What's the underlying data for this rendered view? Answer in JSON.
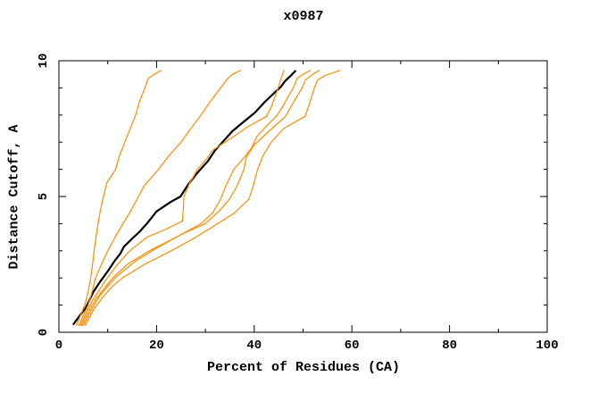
{
  "header": {
    "title": "x0987"
  },
  "chart_data": {
    "type": "line",
    "title": "x0987",
    "xlabel": "Percent of Residues (CA)",
    "ylabel": "Distance Cutoff, A",
    "xlim": [
      0,
      100
    ],
    "ylim": [
      0,
      10
    ],
    "x_major_ticks": [
      0,
      20,
      40,
      60,
      80,
      100
    ],
    "x_minor_ticks": [
      10,
      30,
      50,
      70,
      90
    ],
    "y_major_ticks": [
      0,
      5,
      10
    ],
    "y_minor_ticks": [
      1,
      2,
      3,
      4,
      6,
      7,
      8,
      9
    ],
    "x_tick_labels": [
      "0",
      "20",
      "40",
      "60",
      "80",
      "100"
    ],
    "y_tick_labels": [
      "0",
      "5",
      "10"
    ],
    "grid": false,
    "legend": null,
    "axis_color": "#000000",
    "background_color": "#ffffff",
    "series": [
      {
        "name": "black-line",
        "color": "#000000",
        "width": 2.2,
        "points": [
          [
            3.0,
            0.3
          ],
          [
            4.0,
            0.55
          ],
          [
            5.5,
            0.9
          ],
          [
            6.3,
            1.2
          ],
          [
            7.1,
            1.5
          ],
          [
            8.4,
            1.85
          ],
          [
            9.4,
            2.1
          ],
          [
            10.2,
            2.3
          ],
          [
            11.3,
            2.6
          ],
          [
            12.6,
            2.9
          ],
          [
            13.3,
            3.15
          ],
          [
            15.0,
            3.45
          ],
          [
            16.5,
            3.7
          ],
          [
            18.0,
            4.0
          ],
          [
            20.0,
            4.45
          ],
          [
            22.9,
            4.8
          ],
          [
            24.9,
            5.0
          ],
          [
            26.5,
            5.45
          ],
          [
            28.5,
            5.9
          ],
          [
            30.5,
            6.3
          ],
          [
            32.0,
            6.7
          ],
          [
            33.5,
            7.0
          ],
          [
            35.5,
            7.4
          ],
          [
            37.5,
            7.7
          ],
          [
            40.2,
            8.1
          ],
          [
            42.0,
            8.45
          ],
          [
            44.0,
            8.8
          ],
          [
            45.5,
            9.05
          ],
          [
            46.3,
            9.25
          ],
          [
            47.5,
            9.45
          ],
          [
            48.4,
            9.62
          ]
        ]
      },
      {
        "name": "orange-line-1",
        "color": "#ff8c00",
        "width": 1.2,
        "points": [
          [
            3.6,
            0.25
          ],
          [
            4.6,
            0.7
          ],
          [
            5.3,
            1.0
          ],
          [
            6.0,
            1.5
          ],
          [
            6.5,
            2.0
          ],
          [
            6.9,
            2.5
          ],
          [
            7.2,
            3.0
          ],
          [
            7.6,
            3.5
          ],
          [
            8.0,
            4.0
          ],
          [
            8.5,
            4.5
          ],
          [
            9.0,
            4.9
          ],
          [
            9.8,
            5.5
          ],
          [
            11.6,
            6.0
          ],
          [
            12.4,
            6.5
          ],
          [
            13.5,
            7.0
          ],
          [
            14.6,
            7.5
          ],
          [
            15.7,
            8.0
          ],
          [
            16.5,
            8.5
          ],
          [
            17.6,
            9.0
          ],
          [
            18.3,
            9.35
          ],
          [
            19.5,
            9.5
          ],
          [
            20.9,
            9.64
          ]
        ]
      },
      {
        "name": "orange-line-2",
        "color": "#ff8c00",
        "width": 1.2,
        "points": [
          [
            4.1,
            0.25
          ],
          [
            5.2,
            0.7
          ],
          [
            6.0,
            1.0
          ],
          [
            6.8,
            1.5
          ],
          [
            7.5,
            2.0
          ],
          [
            8.7,
            2.5
          ],
          [
            10.0,
            3.0
          ],
          [
            11.5,
            3.5
          ],
          [
            13.1,
            4.0
          ],
          [
            14.5,
            4.4
          ],
          [
            16.0,
            4.9
          ],
          [
            17.5,
            5.4
          ],
          [
            20.4,
            6.0
          ],
          [
            22.5,
            6.5
          ],
          [
            25.0,
            7.0
          ],
          [
            27.0,
            7.5
          ],
          [
            29.1,
            8.0
          ],
          [
            31.0,
            8.5
          ],
          [
            33.1,
            9.0
          ],
          [
            34.6,
            9.35
          ],
          [
            35.5,
            9.5
          ],
          [
            37.2,
            9.64
          ]
        ]
      },
      {
        "name": "orange-line-3",
        "color": "#ff8c00",
        "width": 1.2,
        "points": [
          [
            4.4,
            0.25
          ],
          [
            5.8,
            0.8
          ],
          [
            7.0,
            1.2
          ],
          [
            9.5,
            1.9
          ],
          [
            12.0,
            2.5
          ],
          [
            14.5,
            3.0
          ],
          [
            18.0,
            3.5
          ],
          [
            22.0,
            3.8
          ],
          [
            25.3,
            4.1
          ],
          [
            25.5,
            4.6
          ],
          [
            25.6,
            5.0
          ],
          [
            26.8,
            5.5
          ],
          [
            28.4,
            6.0
          ],
          [
            30.3,
            6.4
          ],
          [
            31.5,
            6.7
          ],
          [
            34.0,
            7.0
          ],
          [
            36.5,
            7.3
          ],
          [
            38.5,
            7.55
          ],
          [
            40.5,
            7.75
          ],
          [
            42.5,
            7.95
          ],
          [
            43.5,
            8.3
          ],
          [
            44.3,
            8.7
          ],
          [
            45.0,
            9.05
          ],
          [
            45.6,
            9.4
          ],
          [
            46.1,
            9.64
          ]
        ]
      },
      {
        "name": "orange-line-4",
        "color": "#ff8c00",
        "width": 1.2,
        "points": [
          [
            4.7,
            0.25
          ],
          [
            6.2,
            0.8
          ],
          [
            7.5,
            1.2
          ],
          [
            9.2,
            1.6
          ],
          [
            11.0,
            2.0
          ],
          [
            14.0,
            2.5
          ],
          [
            18.5,
            3.0
          ],
          [
            24.0,
            3.5
          ],
          [
            29.1,
            4.0
          ],
          [
            31.5,
            4.4
          ],
          [
            33.1,
            4.9
          ],
          [
            34.2,
            5.4
          ],
          [
            35.8,
            6.0
          ],
          [
            38.0,
            6.45
          ],
          [
            39.5,
            6.8
          ],
          [
            40.5,
            7.2
          ],
          [
            42.5,
            7.6
          ],
          [
            44.5,
            7.95
          ],
          [
            45.8,
            8.3
          ],
          [
            47.0,
            8.7
          ],
          [
            48.0,
            9.0
          ],
          [
            48.8,
            9.35
          ],
          [
            50.0,
            9.5
          ],
          [
            51.5,
            9.64
          ]
        ]
      },
      {
        "name": "orange-line-5",
        "color": "#ff8c00",
        "width": 1.2,
        "points": [
          [
            5.0,
            0.25
          ],
          [
            6.6,
            0.8
          ],
          [
            8.2,
            1.3
          ],
          [
            9.8,
            1.65
          ],
          [
            11.5,
            2.0
          ],
          [
            15.5,
            2.6
          ],
          [
            20.0,
            3.1
          ],
          [
            25.0,
            3.6
          ],
          [
            30.0,
            4.0
          ],
          [
            33.0,
            4.5
          ],
          [
            34.9,
            4.9
          ],
          [
            36.5,
            5.4
          ],
          [
            37.9,
            6.0
          ],
          [
            38.4,
            6.45
          ],
          [
            40.0,
            6.9
          ],
          [
            43.0,
            7.4
          ],
          [
            46.4,
            7.95
          ],
          [
            47.5,
            8.3
          ],
          [
            48.8,
            8.7
          ],
          [
            49.8,
            9.0
          ],
          [
            50.5,
            9.3
          ],
          [
            52.0,
            9.5
          ],
          [
            53.3,
            9.64
          ]
        ]
      },
      {
        "name": "orange-line-6",
        "color": "#ff8c00",
        "width": 1.2,
        "points": [
          [
            5.4,
            0.25
          ],
          [
            7.0,
            0.8
          ],
          [
            9.0,
            1.3
          ],
          [
            11.0,
            1.7
          ],
          [
            13.0,
            2.0
          ],
          [
            17.5,
            2.5
          ],
          [
            23.0,
            3.0
          ],
          [
            28.0,
            3.5
          ],
          [
            32.5,
            4.0
          ],
          [
            36.0,
            4.4
          ],
          [
            38.9,
            4.9
          ],
          [
            39.8,
            5.4
          ],
          [
            40.7,
            6.0
          ],
          [
            41.8,
            6.5
          ],
          [
            43.5,
            7.0
          ],
          [
            46.0,
            7.5
          ],
          [
            50.4,
            7.95
          ],
          [
            51.3,
            8.4
          ],
          [
            52.3,
            9.0
          ],
          [
            53.0,
            9.3
          ],
          [
            54.5,
            9.45
          ],
          [
            56.0,
            9.55
          ],
          [
            57.5,
            9.64
          ]
        ]
      }
    ]
  }
}
